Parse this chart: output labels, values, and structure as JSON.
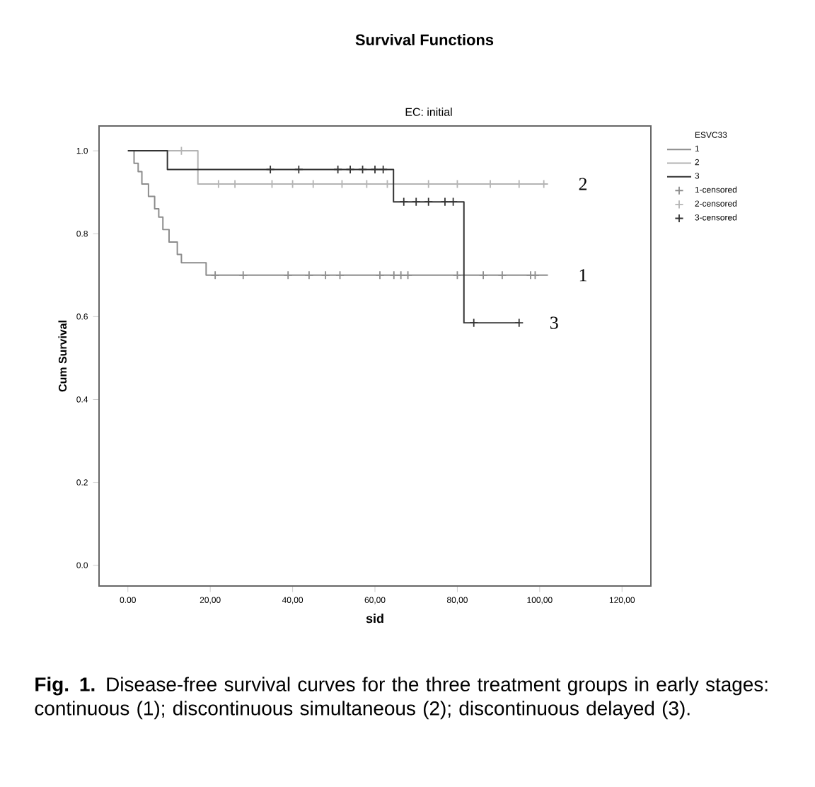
{
  "chart_data": {
    "type": "step",
    "title": "Survival Functions",
    "subtitle": "EC: initial",
    "xlabel": "sid",
    "ylabel": "Cum Survival",
    "legend_title": "ESVC33",
    "legend": "right",
    "xlim": [
      -7,
      127
    ],
    "ylim": [
      -0.05,
      1.06
    ],
    "xticks": [
      {
        "value": 0,
        "label": "0.00"
      },
      {
        "value": 20,
        "label": "20,00"
      },
      {
        "value": 40,
        "label": "40,00"
      },
      {
        "value": 60,
        "label": "60,00"
      },
      {
        "value": 80,
        "label": "80,00"
      },
      {
        "value": 100,
        "label": "100,00"
      },
      {
        "value": 120,
        "label": "120,00"
      }
    ],
    "yticks": [
      {
        "value": 0,
        "label": "0.0"
      },
      {
        "value": 0.2,
        "label": "0.2"
      },
      {
        "value": 0.4,
        "label": "0.4"
      },
      {
        "value": 0.6,
        "label": "0.6"
      },
      {
        "value": 0.8,
        "label": "0.8"
      },
      {
        "value": 1,
        "label": "1.0"
      }
    ],
    "series": [
      {
        "name": "1",
        "color": "#8c8c8c",
        "marker": "none",
        "x": [
          0,
          1.5,
          2.5,
          3.4,
          5,
          6.5,
          7.5,
          8.5,
          10,
          12,
          13,
          19,
          102
        ],
        "values": [
          1,
          0.97,
          0.95,
          0.92,
          0.89,
          0.86,
          0.84,
          0.81,
          0.78,
          0.75,
          0.73,
          0.7,
          0.7
        ]
      },
      {
        "name": "2",
        "color": "#b4b4b4",
        "marker": "none",
        "x": [
          0,
          17,
          102
        ],
        "values": [
          1,
          0.92,
          0.92
        ]
      },
      {
        "name": "3",
        "color": "#333333",
        "marker": "none",
        "x": [
          0,
          9.6,
          64.5,
          81.6,
          95
        ],
        "values": [
          1,
          0.955,
          0.877,
          0.585,
          0.585
        ]
      },
      {
        "name": "1-censored",
        "type": "scatter",
        "color": "#8c8c8c",
        "marker": "cross",
        "x": [
          21.2,
          28,
          38.9,
          44,
          48,
          51.5,
          61.2,
          64.6,
          66.3,
          68,
          80,
          86.3,
          90.9,
          97.8,
          98.9
        ],
        "values": [
          0.7,
          0.7,
          0.7,
          0.7,
          0.7,
          0.7,
          0.7,
          0.7,
          0.7,
          0.7,
          0.7,
          0.7,
          0.7,
          0.7,
          0.7
        ]
      },
      {
        "name": "2-censored",
        "type": "scatter",
        "color": "#b4b4b4",
        "marker": "cross",
        "x": [
          13,
          22,
          26,
          35,
          40,
          45,
          52,
          58,
          63,
          73,
          80,
          88,
          95,
          101
        ],
        "values": [
          1,
          0.92,
          0.92,
          0.92,
          0.92,
          0.92,
          0.92,
          0.92,
          0.92,
          0.92,
          0.92,
          0.92,
          0.92,
          0.92
        ]
      },
      {
        "name": "3-censored",
        "type": "scatter",
        "color": "#333333",
        "marker": "cross",
        "x": [
          34.6,
          41.5,
          51,
          54,
          57,
          60,
          62,
          67,
          70,
          73,
          77,
          79,
          84,
          95
        ],
        "values": [
          0.955,
          0.955,
          0.955,
          0.955,
          0.955,
          0.955,
          0.955,
          0.877,
          0.877,
          0.877,
          0.877,
          0.877,
          0.585,
          0.585
        ]
      }
    ],
    "annotations": [
      "**Fig. 1.** Disease-free survival curves for the three treatment groups in early stages: continuous (1); discontinuous simultaneous (2); discontinuous delayed (3)."
    ]
  }
}
